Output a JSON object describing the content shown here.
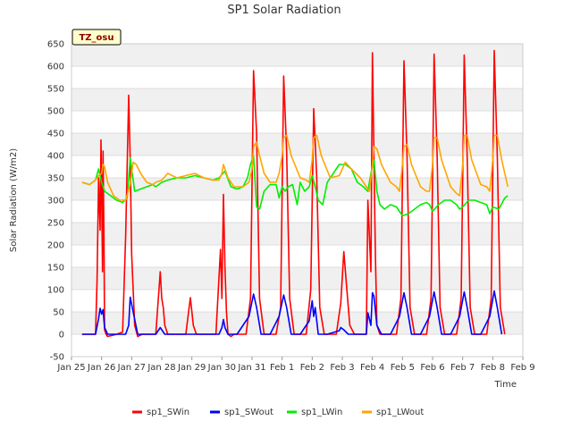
{
  "chart_data": {
    "type": "line",
    "title": "SP1 Solar Radiation",
    "xlabel": "Time",
    "ylabel": "Solar Radiation (W/m2)",
    "xlim": [
      0,
      15
    ],
    "ylim": [
      -50,
      650
    ],
    "yticks": [
      -50,
      0,
      50,
      100,
      150,
      200,
      250,
      300,
      350,
      400,
      450,
      500,
      550,
      600,
      650
    ],
    "xtick_positions": [
      0,
      1,
      2,
      3,
      4,
      5,
      6,
      7,
      8,
      9,
      10,
      11,
      12,
      13,
      14,
      15
    ],
    "xtick_labels": [
      "Jan 25",
      "Jan 26",
      "Jan 27",
      "Jan 28",
      "Jan 29",
      "Jan 30",
      "Jan 31",
      "Feb 1",
      "Feb 2",
      "Feb 3",
      "Feb 4",
      "Feb 5",
      "Feb 6",
      "Feb 7",
      "Feb 8",
      "Feb 9"
    ],
    "grid": true,
    "legend_placement": "bottom",
    "annotation": "TZ_osu",
    "series": [
      {
        "name": "sp1_SWin",
        "color": "#ff0000",
        "x": [
          0.35,
          0.8,
          0.85,
          0.9,
          0.95,
          0.98,
          1.0,
          1.03,
          1.05,
          1.08,
          1.1,
          1.15,
          1.2,
          1.5,
          1.7,
          1.8,
          1.9,
          1.95,
          2.0,
          2.05,
          2.1,
          2.2,
          2.35,
          2.45,
          2.55,
          2.8,
          2.95,
          3.0,
          3.05,
          3.1,
          3.2,
          3.4,
          3.8,
          3.95,
          4.05,
          4.15,
          4.25,
          4.5,
          4.8,
          4.95,
          5.0,
          5.05,
          5.1,
          5.15,
          5.2,
          5.3,
          5.4,
          5.8,
          5.95,
          6.05,
          6.15,
          6.25,
          6.4,
          6.8,
          6.95,
          7.05,
          7.15,
          7.25,
          7.4,
          7.8,
          7.95,
          8.05,
          8.15,
          8.25,
          8.4,
          8.8,
          8.95,
          9.05,
          9.15,
          9.25,
          9.4,
          9.8,
          9.85,
          9.95,
          10.0,
          10.05,
          10.1,
          10.15,
          10.25,
          10.4,
          10.8,
          10.95,
          11.05,
          11.15,
          11.25,
          11.4,
          11.8,
          11.95,
          12.05,
          12.15,
          12.25,
          12.4,
          12.8,
          12.95,
          13.05,
          13.15,
          13.25,
          13.4,
          13.8,
          13.95,
          14.05,
          14.15,
          14.25,
          14.4
        ],
        "y": [
          0,
          0,
          120,
          350,
          233,
          435,
          330,
          140,
          410,
          200,
          10,
          0,
          -5,
          0,
          5,
          220,
          535,
          390,
          180,
          100,
          20,
          -5,
          0,
          0,
          0,
          0,
          140,
          80,
          60,
          20,
          0,
          0,
          0,
          82,
          20,
          0,
          0,
          0,
          0,
          190,
          80,
          313,
          150,
          50,
          0,
          -5,
          0,
          0,
          80,
          590,
          450,
          80,
          0,
          0,
          60,
          578,
          410,
          80,
          0,
          0,
          100,
          505,
          350,
          60,
          0,
          0,
          70,
          185,
          100,
          20,
          0,
          0,
          300,
          140,
          630,
          400,
          180,
          20,
          0,
          0,
          0,
          80,
          612,
          400,
          60,
          0,
          0,
          80,
          627,
          400,
          60,
          0,
          0,
          80,
          625,
          400,
          60,
          0,
          0,
          80,
          635,
          400,
          60,
          0
        ]
      },
      {
        "name": "sp1_SWout",
        "color": "#0000ff",
        "x": [
          0.35,
          0.8,
          0.9,
          0.95,
          1.0,
          1.05,
          1.1,
          1.2,
          1.5,
          1.8,
          1.9,
          1.95,
          2.05,
          2.2,
          2.5,
          2.8,
          2.95,
          3.1,
          3.3,
          4.0,
          4.9,
          5.0,
          5.05,
          5.1,
          5.2,
          5.5,
          5.9,
          6.05,
          6.15,
          6.3,
          6.6,
          6.9,
          7.05,
          7.15,
          7.3,
          7.6,
          7.9,
          8.0,
          8.05,
          8.1,
          8.2,
          8.5,
          8.9,
          8.95,
          9.05,
          9.2,
          9.5,
          9.8,
          9.85,
          9.95,
          10.0,
          10.05,
          10.15,
          10.3,
          10.6,
          10.9,
          11.05,
          11.15,
          11.3,
          11.6,
          11.9,
          12.05,
          12.15,
          12.3,
          12.6,
          12.9,
          13.05,
          13.15,
          13.3,
          13.6,
          13.9,
          14.05,
          14.15,
          14.3
        ],
        "y": [
          0,
          0,
          35,
          58,
          45,
          55,
          15,
          0,
          0,
          0,
          20,
          83,
          50,
          0,
          0,
          0,
          15,
          0,
          0,
          0,
          0,
          15,
          33,
          15,
          0,
          0,
          40,
          90,
          60,
          0,
          0,
          40,
          88,
          60,
          0,
          0,
          30,
          75,
          40,
          60,
          0,
          0,
          8,
          15,
          10,
          0,
          0,
          0,
          48,
          20,
          93,
          85,
          20,
          0,
          0,
          40,
          93,
          60,
          0,
          0,
          40,
          95,
          60,
          0,
          0,
          40,
          95,
          60,
          0,
          0,
          40,
          97,
          60,
          0
        ]
      },
      {
        "name": "sp1_LWin",
        "color": "#00ee00",
        "x": [
          0.35,
          0.6,
          0.8,
          0.9,
          1.0,
          1.1,
          1.3,
          1.5,
          1.7,
          1.85,
          1.95,
          2.1,
          2.3,
          2.5,
          2.7,
          2.8,
          3.0,
          3.2,
          3.5,
          3.8,
          4.1,
          4.4,
          4.7,
          4.9,
          5.1,
          5.3,
          5.5,
          5.7,
          5.85,
          5.95,
          6.05,
          6.15,
          6.25,
          6.4,
          6.6,
          6.8,
          6.9,
          7.0,
          7.1,
          7.2,
          7.35,
          7.5,
          7.6,
          7.75,
          7.9,
          8.0,
          8.1,
          8.2,
          8.35,
          8.5,
          8.7,
          8.9,
          9.1,
          9.3,
          9.5,
          9.7,
          9.85,
          9.95,
          10.05,
          10.15,
          10.25,
          10.4,
          10.6,
          10.8,
          10.9,
          11.0,
          11.2,
          11.4,
          11.6,
          11.8,
          11.9,
          12.0,
          12.2,
          12.4,
          12.6,
          12.8,
          12.9,
          13.0,
          13.2,
          13.4,
          13.6,
          13.8,
          13.9,
          14.0,
          14.2,
          14.4,
          14.5
        ],
        "y": [
          340,
          335,
          345,
          370,
          340,
          320,
          310,
          300,
          295,
          305,
          395,
          320,
          325,
          330,
          335,
          330,
          340,
          345,
          350,
          350,
          355,
          350,
          345,
          350,
          365,
          330,
          325,
          330,
          350,
          380,
          400,
          285,
          280,
          320,
          335,
          335,
          305,
          330,
          320,
          330,
          335,
          290,
          340,
          320,
          330,
          355,
          330,
          300,
          290,
          340,
          360,
          380,
          380,
          370,
          340,
          330,
          320,
          360,
          390,
          320,
          290,
          280,
          290,
          285,
          275,
          265,
          270,
          280,
          290,
          295,
          290,
          275,
          290,
          300,
          300,
          290,
          280,
          285,
          300,
          300,
          295,
          290,
          270,
          285,
          280,
          305,
          310
        ]
      },
      {
        "name": "sp1_LWout",
        "color": "#ffa500",
        "x": [
          0.35,
          0.6,
          0.8,
          0.9,
          1.0,
          1.05,
          1.1,
          1.2,
          1.4,
          1.6,
          1.8,
          1.95,
          2.05,
          2.15,
          2.3,
          2.5,
          2.7,
          2.8,
          3.0,
          3.2,
          3.5,
          3.8,
          4.1,
          4.4,
          4.7,
          4.9,
          5.0,
          5.05,
          5.1,
          5.2,
          5.4,
          5.7,
          5.9,
          6.0,
          6.05,
          6.15,
          6.25,
          6.4,
          6.6,
          6.8,
          6.9,
          7.0,
          7.05,
          7.15,
          7.3,
          7.6,
          7.8,
          7.9,
          8.0,
          8.05,
          8.15,
          8.3,
          8.6,
          8.9,
          9.0,
          9.1,
          9.3,
          9.6,
          9.8,
          9.9,
          10.0,
          10.05,
          10.15,
          10.3,
          10.6,
          10.8,
          10.9,
          11.0,
          11.05,
          11.15,
          11.3,
          11.6,
          11.8,
          11.9,
          12.0,
          12.05,
          12.15,
          12.3,
          12.6,
          12.8,
          12.9,
          13.0,
          13.05,
          13.15,
          13.3,
          13.6,
          13.8,
          13.9,
          14.0,
          14.05,
          14.15,
          14.3,
          14.5
        ],
        "y": [
          340,
          335,
          345,
          355,
          360,
          380,
          375,
          340,
          310,
          300,
          300,
          335,
          385,
          380,
          360,
          340,
          335,
          340,
          345,
          360,
          350,
          355,
          360,
          350,
          345,
          345,
          360,
          380,
          370,
          350,
          330,
          330,
          340,
          370,
          420,
          430,
          400,
          360,
          340,
          340,
          360,
          400,
          440,
          445,
          400,
          350,
          345,
          340,
          390,
          440,
          445,
          400,
          350,
          355,
          370,
          385,
          370,
          350,
          330,
          320,
          380,
          420,
          415,
          380,
          340,
          330,
          320,
          380,
          420,
          425,
          380,
          330,
          320,
          320,
          380,
          440,
          440,
          390,
          330,
          315,
          310,
          380,
          445,
          445,
          390,
          335,
          330,
          320,
          390,
          445,
          445,
          390,
          330
        ]
      }
    ]
  }
}
